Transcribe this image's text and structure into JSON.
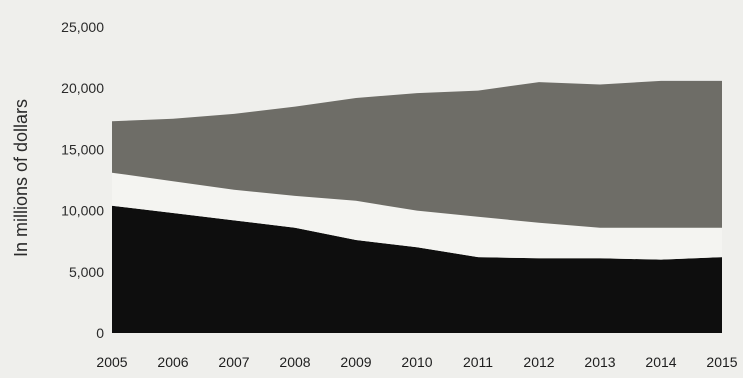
{
  "chart_data": {
    "type": "area",
    "ylabel": "In millions of dollars",
    "xlabel": "",
    "ylim": [
      0,
      25000
    ],
    "yticks": [
      0,
      5000,
      10000,
      15000,
      20000,
      25000
    ],
    "ytick_labels": [
      "0",
      "5,000",
      "10,000",
      "15,000",
      "20,000",
      "25,000"
    ],
    "x": [
      2005,
      2006,
      2007,
      2008,
      2009,
      2010,
      2011,
      2012,
      2013,
      2014,
      2015
    ],
    "x_labels": [
      "2005",
      "2006",
      "2007",
      "2008",
      "2009",
      "2010",
      "2011",
      "2012",
      "2013",
      "2014",
      "2015"
    ],
    "series": [
      {
        "color": "#0e0e0e",
        "values": [
          10400,
          9800,
          9200,
          8600,
          7600,
          7000,
          6200,
          6100,
          6100,
          6000,
          6200
        ]
      },
      {
        "color": "#f4f4f1",
        "values": [
          2700,
          2600,
          2500,
          2600,
          3200,
          3000,
          3300,
          2900,
          2500,
          2600,
          2400
        ]
      },
      {
        "color": "#6e6d67",
        "values": [
          4200,
          5100,
          6200,
          7300,
          8400,
          9600,
          10300,
          11500,
          11700,
          12000,
          12000
        ]
      }
    ],
    "grid": false,
    "legend": "none"
  }
}
